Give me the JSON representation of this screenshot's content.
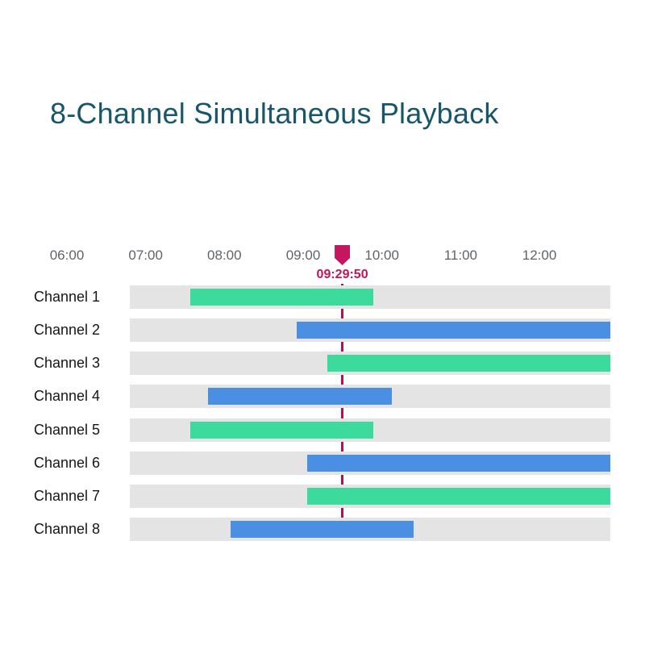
{
  "page": {
    "title": "8-Channel Simultaneous Playback",
    "background": "#ffffff",
    "title_color": "#18566b"
  },
  "chart_data": {
    "type": "bar",
    "subtype": "gantt-playback-timeline",
    "title": "8-Channel Simultaneous Playback",
    "x_axis": {
      "tick_labels": [
        "06:00",
        "07:00",
        "08:00",
        "09:00",
        "10:00",
        "11:00",
        "12:00"
      ],
      "tick_hours": [
        6,
        7,
        8,
        9,
        10,
        11,
        12
      ],
      "label_color": "#5f6469",
      "grid": false
    },
    "track": {
      "start_hour": 6.8,
      "end_hour": 12.9,
      "color": "#e4e4e4"
    },
    "playhead": {
      "time_label": "09:29:50",
      "hour": 9.497222,
      "marker_color": "#c4175f",
      "text_color": "#c01459",
      "line_color": "#b01257"
    },
    "colors": {
      "green": "#3cdb9d",
      "blue": "#4b8fe2"
    },
    "label_color": "#161616",
    "rows": [
      {
        "label": "Channel 1",
        "bar": {
          "color": "green",
          "start": "07:34",
          "end": "09:53",
          "start_hour": 7.57,
          "end_hour": 9.89
        }
      },
      {
        "label": "Channel 2",
        "bar": {
          "color": "blue",
          "start": "08:55",
          "end": "12:54+",
          "start_hour": 8.92,
          "end_hour": 12.9
        }
      },
      {
        "label": "Channel 3",
        "bar": {
          "color": "green",
          "start": "09:19",
          "end": "12:54+",
          "start_hour": 9.31,
          "end_hour": 12.9
        }
      },
      {
        "label": "Channel 4",
        "bar": {
          "color": "blue",
          "start": "07:47",
          "end": "10:08",
          "start_hour": 7.79,
          "end_hour": 10.13
        }
      },
      {
        "label": "Channel 5",
        "bar": {
          "color": "green",
          "start": "07:34",
          "end": "09:53",
          "start_hour": 7.57,
          "end_hour": 9.89
        }
      },
      {
        "label": "Channel 6",
        "bar": {
          "color": "blue",
          "start": "09:03",
          "end": "12:54+",
          "start_hour": 9.05,
          "end_hour": 12.9
        }
      },
      {
        "label": "Channel 7",
        "bar": {
          "color": "green",
          "start": "09:03",
          "end": "12:54+",
          "start_hour": 9.05,
          "end_hour": 12.9
        }
      },
      {
        "label": "Channel 8",
        "bar": {
          "color": "blue",
          "start": "08:05",
          "end": "10:24",
          "start_hour": 8.08,
          "end_hour": 10.4
        }
      }
    ]
  }
}
